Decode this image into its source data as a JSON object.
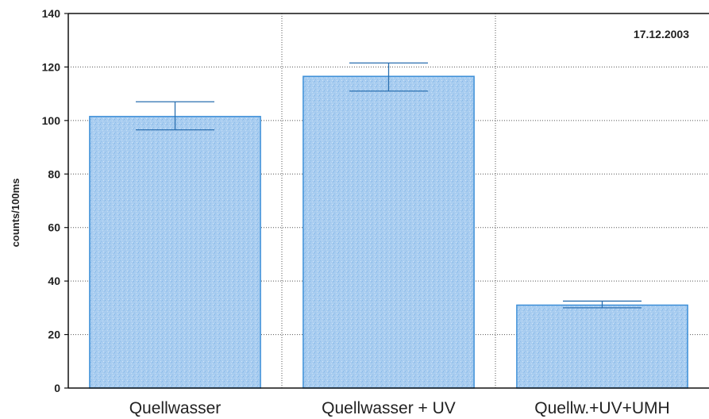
{
  "chart_data": {
    "type": "bar",
    "categories": [
      "Quellwasser",
      "Quellwasser + UV",
      "Quellw.+UV+UMH"
    ],
    "values": [
      101.5,
      116.5,
      31
    ],
    "error_high": [
      107,
      121.5,
      32.5
    ],
    "error_low": [
      96.5,
      111,
      30
    ],
    "ylabel": "counts/100ms",
    "xlabel": "",
    "ylim": [
      0,
      140
    ],
    "yticks": [
      0,
      20,
      40,
      60,
      80,
      100,
      120,
      140
    ],
    "grid": true,
    "annotation": "17.12.2003",
    "colors": {
      "bar_fill": "#a9cdf0",
      "bar_stroke": "#3d8fd8",
      "error": "#2a6fb0",
      "grid": "#555555"
    }
  }
}
